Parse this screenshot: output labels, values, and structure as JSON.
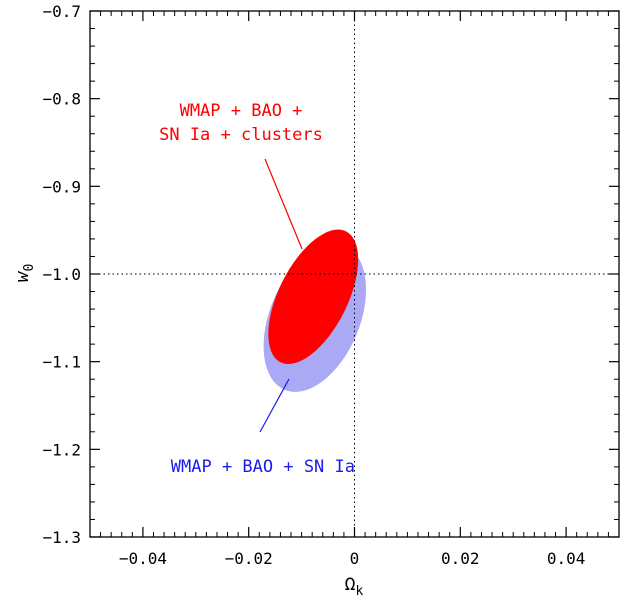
{
  "chart_data": {
    "type": "contour",
    "xlabel": "Ωk",
    "ylabel": "w0",
    "xlim": [
      -0.05,
      0.05
    ],
    "ylim": [
      -1.3,
      -0.7
    ],
    "x_ticks": [
      -0.04,
      -0.02,
      0,
      0.02,
      0.04
    ],
    "x_tick_labels": [
      "−0.04",
      "−0.02",
      "0",
      "0.02",
      "0.04"
    ],
    "y_ticks": [
      -0.7,
      -0.8,
      -0.9,
      -1.0,
      -1.1,
      -1.2,
      -1.3
    ],
    "y_tick_labels": [
      "−0.7",
      "−0.8",
      "−0.9",
      "−1.0",
      "−1.1",
      "−1.2",
      "−1.3"
    ],
    "reference_lines": {
      "x": 0,
      "y": -1.0,
      "style": "dotted"
    },
    "grid": false,
    "series": [
      {
        "name": "WMAP + BAO + SN Ia",
        "color": "#a9a9f5",
        "label_color": "#1a1aee",
        "label_lines": [
          "WMAP + BAO + SN Ia"
        ],
        "label_anchor": {
          "x": -0.0128,
          "y": -1.123
        },
        "ellipse": {
          "center": [
            -0.0075,
            -1.05
          ],
          "semi_x": 0.0085,
          "semi_y": 0.089,
          "tilt_deg": 22.7
        }
      },
      {
        "name": "WMAP + BAO + SN Ia + clusters",
        "color": "#ff0000",
        "label_color": "#ff0000",
        "label_lines": [
          "WMAP + BAO +",
          "SN Ia + clusters"
        ],
        "label_anchor": {
          "x": -0.0113,
          "y": -0.972
        },
        "ellipse": {
          "center": [
            -0.0078,
            -1.026
          ],
          "semi_x": 0.0065,
          "semi_y": 0.0835,
          "tilt_deg": 26.6
        }
      }
    ]
  }
}
